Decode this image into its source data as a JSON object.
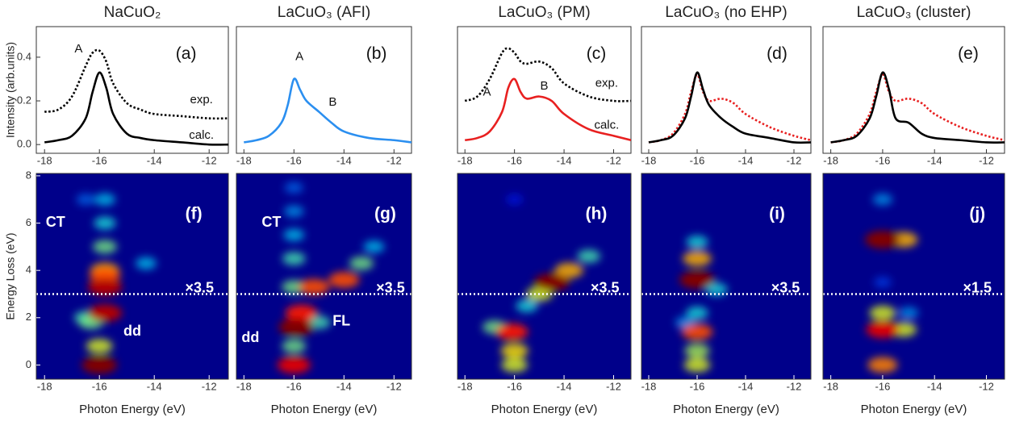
{
  "chart_data": [
    {
      "type": "line",
      "title": "NaCuO₂",
      "xlim": [
        -18.3,
        -11.3
      ],
      "ylim": [
        -0.04,
        0.54
      ],
      "xticks": [
        -18,
        -16,
        -14,
        -12
      ],
      "yticks": [
        {
          "value": 0,
          "label": "0.0"
        },
        0.2,
        0.4
      ],
      "ylabel": "Intensity (arb.units)",
      "x": [
        -18,
        -17.5,
        -17,
        -16.5,
        -16.25,
        -16,
        -15.75,
        -15.5,
        -15,
        -14.5,
        -14,
        -13,
        -12,
        -11.3
      ],
      "series": [
        {
          "name": "exp.",
          "color": "#000000",
          "linestyle": "dotted",
          "values": [
            0.15,
            0.16,
            0.22,
            0.36,
            0.42,
            0.43,
            0.38,
            0.28,
            0.19,
            0.16,
            0.14,
            0.13,
            0.12,
            0.12
          ]
        },
        {
          "name": "calc.",
          "color": "#000000",
          "linestyle": "solid",
          "values": [
            0.01,
            0.02,
            0.04,
            0.12,
            0.24,
            0.33,
            0.26,
            0.14,
            0.05,
            0.03,
            0.02,
            0.01,
            0.0,
            0.0
          ]
        }
      ],
      "annotations": [
        "(a)",
        "A",
        "exp.",
        "calc."
      ]
    },
    {
      "type": "line",
      "title": "LaCuO₃ (AFI)",
      "xlim": [
        -18.3,
        -11.3
      ],
      "ylim": [
        -0.04,
        0.54
      ],
      "xticks": [
        -18,
        -16,
        -14,
        -12
      ],
      "x": [
        -18,
        -17.5,
        -17,
        -16.5,
        -16.25,
        -16,
        -15.75,
        -15.5,
        -15,
        -14.5,
        -14,
        -13,
        -12,
        -11.3
      ],
      "series": [
        {
          "name": "calc.",
          "color": "#2b8ff0",
          "linestyle": "solid",
          "values": [
            0.01,
            0.02,
            0.04,
            0.1,
            0.18,
            0.3,
            0.25,
            0.2,
            0.15,
            0.1,
            0.06,
            0.03,
            0.02,
            0.01
          ]
        }
      ],
      "annotations": [
        "(b)",
        "A",
        "B"
      ]
    },
    {
      "type": "line",
      "title": "LaCuO₃ (PM)",
      "xlim": [
        -18.3,
        -11.3
      ],
      "ylim": [
        -0.04,
        0.54
      ],
      "xticks": [
        -18,
        -16,
        -14,
        -12
      ],
      "x": [
        -18,
        -17.5,
        -17,
        -16.5,
        -16.25,
        -16,
        -15.75,
        -15.5,
        -15,
        -14.5,
        -14,
        -13,
        -12,
        -11.3
      ],
      "series": [
        {
          "name": "exp.",
          "color": "#000000",
          "linestyle": "dotted",
          "values": [
            0.2,
            0.22,
            0.3,
            0.42,
            0.44,
            0.42,
            0.38,
            0.37,
            0.38,
            0.35,
            0.28,
            0.22,
            0.2,
            0.2
          ]
        },
        {
          "name": "calc.",
          "color": "#e82020",
          "linestyle": "solid",
          "values": [
            0.02,
            0.03,
            0.06,
            0.15,
            0.26,
            0.3,
            0.24,
            0.21,
            0.22,
            0.2,
            0.14,
            0.07,
            0.04,
            0.02
          ]
        }
      ],
      "annotations": [
        "(c)",
        "exp.",
        "A",
        "B",
        "calc."
      ]
    },
    {
      "type": "line",
      "title": "LaCuO₃ (no EHP)",
      "xlim": [
        -18.3,
        -11.3
      ],
      "ylim": [
        -0.04,
        0.54
      ],
      "xticks": [
        -18,
        -16,
        -14,
        -12
      ],
      "x": [
        -18,
        -17.5,
        -17,
        -16.5,
        -16.25,
        -16,
        -15.75,
        -15.5,
        -15,
        -14.5,
        -14,
        -13,
        -12,
        -11.3
      ],
      "series": [
        {
          "name": "exp.",
          "color": "#e82020",
          "linestyle": "dotted",
          "values": [
            0.01,
            0.02,
            0.05,
            0.14,
            0.24,
            0.32,
            0.24,
            0.2,
            0.21,
            0.19,
            0.14,
            0.08,
            0.04,
            0.02
          ]
        },
        {
          "name": "calc.",
          "color": "#000000",
          "linestyle": "solid",
          "values": [
            0.01,
            0.02,
            0.04,
            0.12,
            0.22,
            0.33,
            0.25,
            0.18,
            0.12,
            0.08,
            0.05,
            0.03,
            0.01,
            0.01
          ]
        }
      ],
      "annotations": [
        "(d)"
      ]
    },
    {
      "type": "line",
      "title": "LaCuO₃ (cluster)",
      "xlim": [
        -18.3,
        -11.3
      ],
      "ylim": [
        -0.04,
        0.54
      ],
      "xticks": [
        -18,
        -16,
        -14,
        -12
      ],
      "x": [
        -18,
        -17.5,
        -17,
        -16.5,
        -16.25,
        -16,
        -15.75,
        -15.5,
        -15,
        -14.5,
        -14,
        -13,
        -12,
        -11.3
      ],
      "series": [
        {
          "name": "exp.",
          "color": "#e82020",
          "linestyle": "dotted",
          "values": [
            0.01,
            0.02,
            0.05,
            0.14,
            0.24,
            0.32,
            0.24,
            0.2,
            0.21,
            0.19,
            0.14,
            0.08,
            0.04,
            0.02
          ]
        },
        {
          "name": "calc.",
          "color": "#000000",
          "linestyle": "solid",
          "values": [
            0.01,
            0.02,
            0.04,
            0.12,
            0.22,
            0.33,
            0.25,
            0.12,
            0.1,
            0.05,
            0.03,
            0.02,
            0.01,
            0.01
          ]
        }
      ],
      "annotations": [
        "(e)"
      ]
    },
    {
      "type": "heatmap",
      "xlim": [
        -18.3,
        -11.3
      ],
      "ylim": [
        -0.6,
        8.1
      ],
      "xticks": [
        -18,
        -16,
        -14,
        -12
      ],
      "yticks": [
        0,
        2,
        4,
        6,
        8
      ],
      "xlabel": "Photon Energy (eV)",
      "ylabel": "Energy Loss (eV)",
      "divider": 3,
      "x": [
        -16.5,
        -14.3,
        -16.5,
        -15.8,
        -16.3,
        -15.8,
        -15.8,
        -16,
        -15.8,
        -15.8,
        -15.8,
        -15.8,
        -16
      ],
      "y": [
        7,
        4.3,
        2,
        7,
        1.8,
        6,
        5,
        0.8,
        4,
        3.8,
        2.2,
        3.3,
        0
      ],
      "z": [
        0.25,
        0.35,
        0.45,
        0.35,
        0.5,
        0.4,
        0.5,
        0.6,
        0.7,
        0.8,
        0.95,
        0.95,
        1.0
      ],
      "annotations": [
        "(f)",
        "CT",
        "×3.5",
        "dd"
      ]
    },
    {
      "type": "heatmap",
      "xlim": [
        -18.3,
        -11.3
      ],
      "ylim": [
        -0.6,
        8.1
      ],
      "xticks": [
        -18,
        -16,
        -14,
        -12
      ],
      "xlabel": "Photon Energy (eV)",
      "divider": 3,
      "x": [
        -16,
        -16,
        -16,
        -12.8,
        -16,
        -15,
        -16,
        -16,
        -13.3,
        -16,
        -15.2,
        -14,
        -15.7,
        -15.9
      ],
      "y": [
        7.5,
        6.5,
        5.5,
        5,
        4.5,
        1.8,
        3.3,
        0.8,
        4.3,
        0,
        3.3,
        3.6,
        2.2,
        1.6
      ],
      "z": [
        0.25,
        0.3,
        0.35,
        0.35,
        0.45,
        0.45,
        0.5,
        0.5,
        0.5,
        0.9,
        0.8,
        0.8,
        0.85,
        1.0
      ],
      "annotations": [
        "(g)",
        "CT",
        "×3.5",
        "FL",
        "dd"
      ]
    },
    {
      "type": "heatmap",
      "xlim": [
        -18.3,
        -11.3
      ],
      "ylim": [
        -0.6,
        8.1
      ],
      "xticks": [
        -18,
        -16,
        -14,
        -12
      ],
      "xlabel": "Photon Energy (eV)",
      "divider": 3,
      "x": [
        -16,
        -15.5,
        -13,
        -16.8,
        -16,
        -15,
        -16,
        -13.8,
        -16.1,
        -14.5
      ],
      "y": [
        7,
        2.5,
        4.6,
        1.6,
        0,
        3,
        0.6,
        4,
        1.4,
        3.5
      ],
      "z": [
        0.15,
        0.4,
        0.45,
        0.5,
        0.6,
        0.6,
        0.65,
        0.7,
        0.85,
        1.0
      ],
      "annotations": [
        "(h)",
        "×3.5"
      ]
    },
    {
      "type": "heatmap",
      "xlim": [
        -18.3,
        -11.3
      ],
      "ylim": [
        -0.6,
        8.1
      ],
      "xticks": [
        -18,
        -16,
        -14,
        -12
      ],
      "xlabel": "Photon Energy (eV)",
      "divider": 3,
      "x": [
        -16.5,
        -16,
        -16,
        -15.2,
        -16,
        -16,
        -16,
        -16,
        -16
      ],
      "y": [
        1.8,
        2.2,
        5.2,
        3.2,
        0.6,
        0,
        4.5,
        1.4,
        3.6
      ],
      "z": [
        0.3,
        0.4,
        0.4,
        0.4,
        0.55,
        0.6,
        0.7,
        0.8,
        1.0
      ],
      "annotations": [
        "(i)",
        "×3.5"
      ]
    },
    {
      "type": "heatmap",
      "xlim": [
        -18.3,
        -11.3
      ],
      "ylim": [
        -0.6,
        8.1
      ],
      "xticks": [
        -18,
        -16,
        -14,
        -12
      ],
      "xlabel": "Photon Energy (eV)",
      "divider": 3,
      "x": [
        -16,
        -15,
        -16,
        -16,
        -15.2,
        -16,
        -15.2,
        -16,
        -16
      ],
      "y": [
        3.5,
        2.2,
        7,
        2.2,
        1.5,
        0,
        5.3,
        1.5,
        5.3
      ],
      "z": [
        0.2,
        0.3,
        0.3,
        0.6,
        0.6,
        0.75,
        0.7,
        0.9,
        1.0
      ],
      "annotations": [
        "(j)",
        "×1.5"
      ]
    }
  ]
}
